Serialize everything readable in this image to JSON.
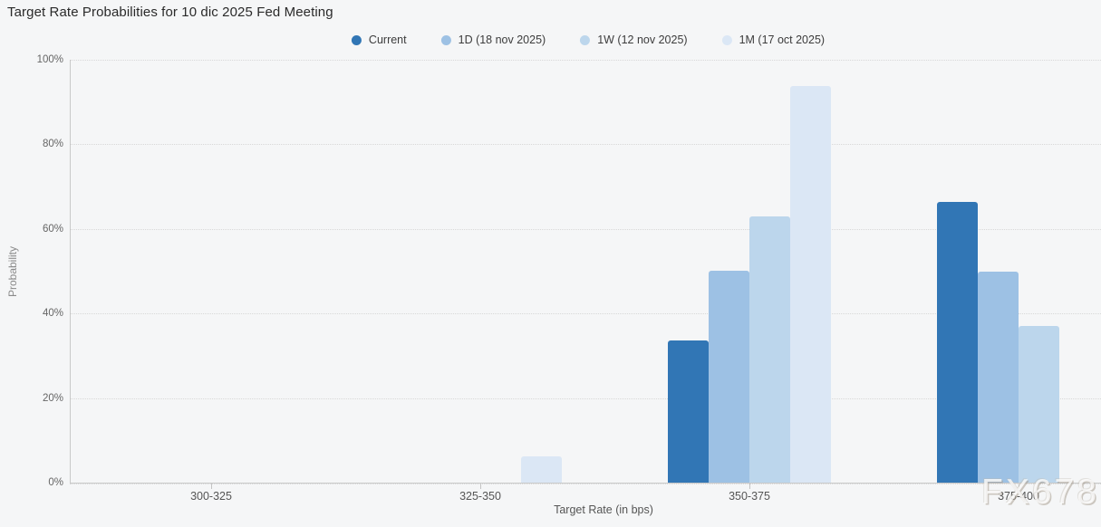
{
  "chart_data": {
    "type": "bar",
    "title": "Target Rate Probabilities for 10 dic 2025 Fed Meeting",
    "categories": [
      "300-325",
      "325-350",
      "350-375",
      "375-400"
    ],
    "series": [
      {
        "name": "Current",
        "color": "#3176b5",
        "values": [
          0,
          0,
          33.6,
          66.4
        ]
      },
      {
        "name": "1D (18 nov 2025)",
        "color": "#9dc1e4",
        "values": [
          0,
          0,
          50.2,
          49.8
        ]
      },
      {
        "name": "1W (12 nov 2025)",
        "color": "#bcd6ec",
        "values": [
          0,
          0,
          62.9,
          37.1
        ]
      },
      {
        "name": "1M (17 oct 2025)",
        "color": "#dbe7f5",
        "values": [
          0,
          6.3,
          93.7,
          0
        ]
      }
    ],
    "xlabel": "Target Rate (in bps)",
    "ylabel": "Probability",
    "ylim": [
      0,
      100
    ],
    "ytick_labels": [
      "0%",
      "20%",
      "40%",
      "60%",
      "80%",
      "100%"
    ],
    "ytick_values": [
      0,
      20,
      40,
      60,
      80,
      100
    ],
    "grid": "horizontal-dotted",
    "legend_position": "top"
  },
  "watermark": "FX678",
  "colors": {
    "background": "#f5f6f7",
    "axis": "#c9c9c9",
    "grid": "#d8d8d8",
    "text_primary": "#2a2a2a",
    "text_axis": "#555555"
  }
}
